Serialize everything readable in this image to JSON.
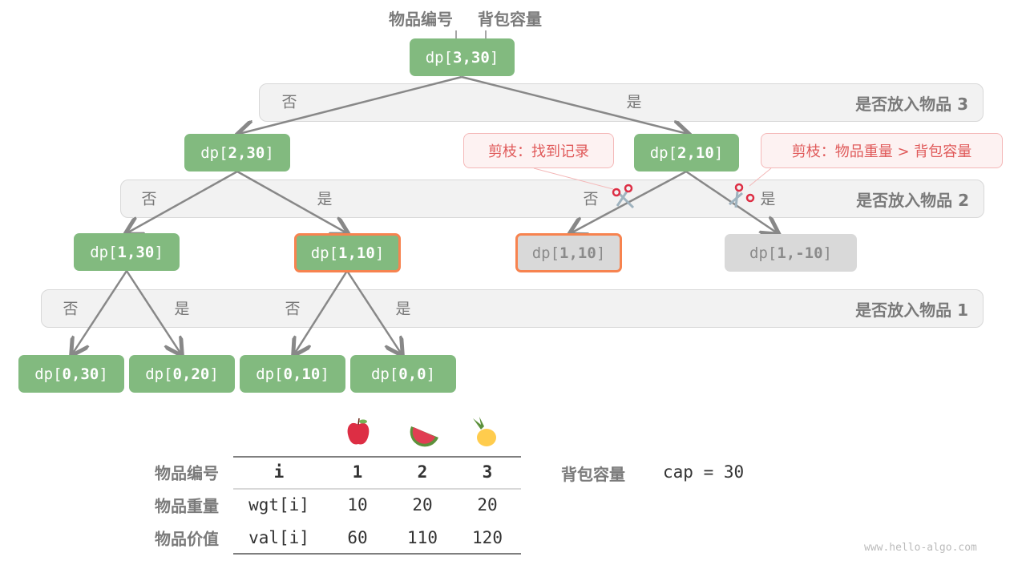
{
  "top_labels": {
    "item_index": "物品编号",
    "capacity": "背包容量"
  },
  "levels": [
    {
      "label": "是否放入物品 3",
      "no": "否",
      "yes": "是"
    },
    {
      "label": "是否放入物品 2",
      "no": "否",
      "yes": "是"
    },
    {
      "label": "是否放入物品 1",
      "no": "否",
      "yes": "是"
    }
  ],
  "nodes": {
    "n330": {
      "prefix": "dp[",
      "args": "3,30",
      "suffix": "]"
    },
    "n230": {
      "prefix": "dp[",
      "args": "2,30",
      "suffix": "]"
    },
    "n210": {
      "prefix": "dp[",
      "args": "2,10",
      "suffix": "]"
    },
    "n130": {
      "prefix": "dp[",
      "args": "1,30",
      "suffix": "]"
    },
    "n110a": {
      "prefix": "dp[",
      "args": "1,10",
      "suffix": "]"
    },
    "n110b": {
      "prefix": "dp[",
      "args": "1,10",
      "suffix": "]"
    },
    "n1m10": {
      "prefix": "dp[",
      "args": "1,-10",
      "suffix": "]"
    },
    "n030": {
      "prefix": "dp[",
      "args": "0,30",
      "suffix": "]"
    },
    "n020": {
      "prefix": "dp[",
      "args": "0,20",
      "suffix": "]"
    },
    "n010": {
      "prefix": "dp[",
      "args": "0,10",
      "suffix": "]"
    },
    "n00": {
      "prefix": "dp[",
      "args": "0,0",
      "suffix": "]"
    }
  },
  "callouts": {
    "found_record": "剪枝：找到记录",
    "overweight": "剪枝：物品重量 > 背包容量"
  },
  "table": {
    "row_labels": [
      "物品编号",
      "物品重量",
      "物品价值"
    ],
    "header": [
      "i",
      "1",
      "2",
      "3"
    ],
    "weights": [
      "wgt[i]",
      "10",
      "20",
      "20"
    ],
    "values": [
      "val[i]",
      "60",
      "110",
      "120"
    ],
    "fruits": [
      "apple",
      "watermelon",
      "pineapple"
    ]
  },
  "capacity": {
    "label": "背包容量",
    "value": "cap = 30"
  },
  "watermark": "www.hello-algo.com",
  "colors": {
    "node": "#82ba7f",
    "pruned": "#d9d9d9",
    "highlight": "#f7834f",
    "callout": "#e05a5a"
  }
}
